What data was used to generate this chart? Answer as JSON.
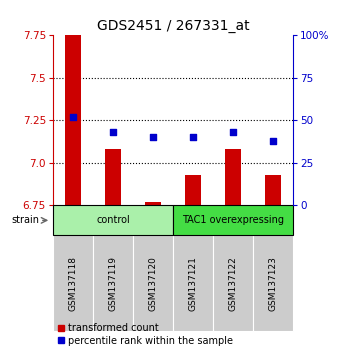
{
  "title": "GDS2451 / 267331_at",
  "samples": [
    "GSM137118",
    "GSM137119",
    "GSM137120",
    "GSM137121",
    "GSM137122",
    "GSM137123"
  ],
  "red_values": [
    7.76,
    7.08,
    6.77,
    6.93,
    7.08,
    6.93
  ],
  "blue_values": [
    52,
    43,
    40,
    40,
    43,
    38
  ],
  "ylim_left": [
    6.75,
    7.75
  ],
  "ylim_right": [
    0,
    100
  ],
  "yticks_left": [
    6.75,
    7.0,
    7.25,
    7.5,
    7.75
  ],
  "yticks_right": [
    0,
    25,
    50,
    75,
    100
  ],
  "ytick_labels_right": [
    "0",
    "25",
    "50",
    "75",
    "100%"
  ],
  "hlines": [
    7.0,
    7.25,
    7.5
  ],
  "bar_color": "#CC0000",
  "dot_color": "#0000CC",
  "bar_bottom": 6.75,
  "bar_width": 0.4,
  "groups": [
    {
      "label": "control",
      "indices": [
        0,
        1,
        2
      ],
      "color": "#aaf0aa"
    },
    {
      "label": "TAC1 overexpressing",
      "indices": [
        3,
        4,
        5
      ],
      "color": "#44dd44"
    }
  ],
  "strain_label": "strain",
  "legend_red": "transformed count",
  "legend_blue": "percentile rank within the sample",
  "title_fontsize": 10,
  "tick_fontsize": 7.5,
  "sample_fontsize": 6.5,
  "group_fontsize": 7,
  "legend_fontsize": 7
}
